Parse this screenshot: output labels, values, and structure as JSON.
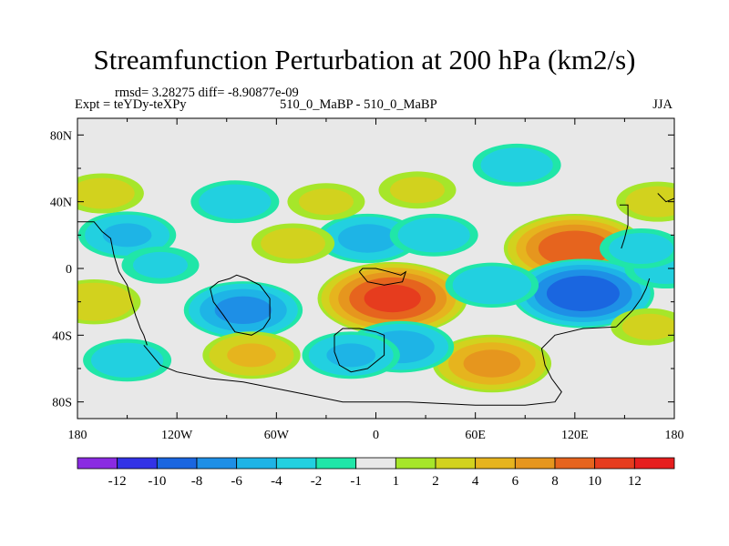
{
  "chart_data": {
    "type": "heatmap",
    "title": "Streamfunction Perturbation at 200 hPa (km2/s)",
    "stats_label": "rmsd= 3.28275 diff= -8.90877e-09",
    "experiment_label": "Expt = teYDy-teXPy",
    "case_label": "510_0_MaBP - 510_0_MaBP",
    "season_label": "JJA",
    "x_ticks": [
      "180",
      "120W",
      "60W",
      "0",
      "60E",
      "120E",
      "180"
    ],
    "x_tick_lon": [
      -180,
      -120,
      -60,
      0,
      60,
      120,
      180
    ],
    "y_ticks": [
      "80N",
      "40N",
      "0",
      "40S",
      "80S"
    ],
    "y_tick_lat": [
      80,
      40,
      0,
      -40,
      -80
    ],
    "xlim": [
      -180,
      180
    ],
    "ylim": [
      -90,
      90
    ],
    "colorbar_labels": [
      "-12",
      "-10",
      "-8",
      "-6",
      "-4",
      "-2",
      "-1",
      "1",
      "2",
      "4",
      "6",
      "8",
      "10",
      "12"
    ],
    "colorbar_colors": [
      "#8a2be2",
      "#3333e6",
      "#1a66e0",
      "#1e8fe6",
      "#1eb4e6",
      "#22d0e0",
      "#20e6a8",
      "#e8e8e8",
      "#a6e62a",
      "#d2d21e",
      "#e6b41e",
      "#e6961e",
      "#e6641e",
      "#e63c1e",
      "#e61e1e"
    ],
    "anomalies": [
      {
        "lon": 10,
        "lat": -18,
        "value": 11
      },
      {
        "lon": 120,
        "lat": 12,
        "value": 10
      },
      {
        "lon": 125,
        "lat": -15,
        "value": -10
      },
      {
        "lon": -80,
        "lat": -25,
        "value": -7
      },
      {
        "lon": 70,
        "lat": -57,
        "value": 7
      },
      {
        "lon": -75,
        "lat": -52,
        "value": 4.5
      },
      {
        "lon": 15,
        "lat": -47,
        "value": -5.5
      },
      {
        "lon": -150,
        "lat": 20,
        "value": -4.5
      },
      {
        "lon": -150,
        "lat": -55,
        "value": -3.5
      },
      {
        "lon": -165,
        "lat": 45,
        "value": 3
      },
      {
        "lon": -5,
        "lat": 18,
        "value": -5
      },
      {
        "lon": 35,
        "lat": 20,
        "value": -3.5
      },
      {
        "lon": 70,
        "lat": -10,
        "value": -4
      },
      {
        "lon": 25,
        "lat": 47,
        "value": 2.5
      },
      {
        "lon": -30,
        "lat": 40,
        "value": 2.5
      },
      {
        "lon": -85,
        "lat": 40,
        "value": -3.5
      },
      {
        "lon": 85,
        "lat": 62,
        "value": -3.5
      },
      {
        "lon": -50,
        "lat": 15,
        "value": 3
      },
      {
        "lon": 170,
        "lat": 40,
        "value": 3
      },
      {
        "lon": 165,
        "lat": -35,
        "value": 2.5
      },
      {
        "lon": -170,
        "lat": -20,
        "value": 4
      },
      {
        "lon": -130,
        "lat": 2,
        "value": -2.5
      },
      {
        "lon": 175,
        "lat": 0,
        "value": -3
      },
      {
        "lon": 160,
        "lat": 12,
        "value": -3
      },
      {
        "lon": -15,
        "lat": -52,
        "value": -4.5
      }
    ]
  }
}
